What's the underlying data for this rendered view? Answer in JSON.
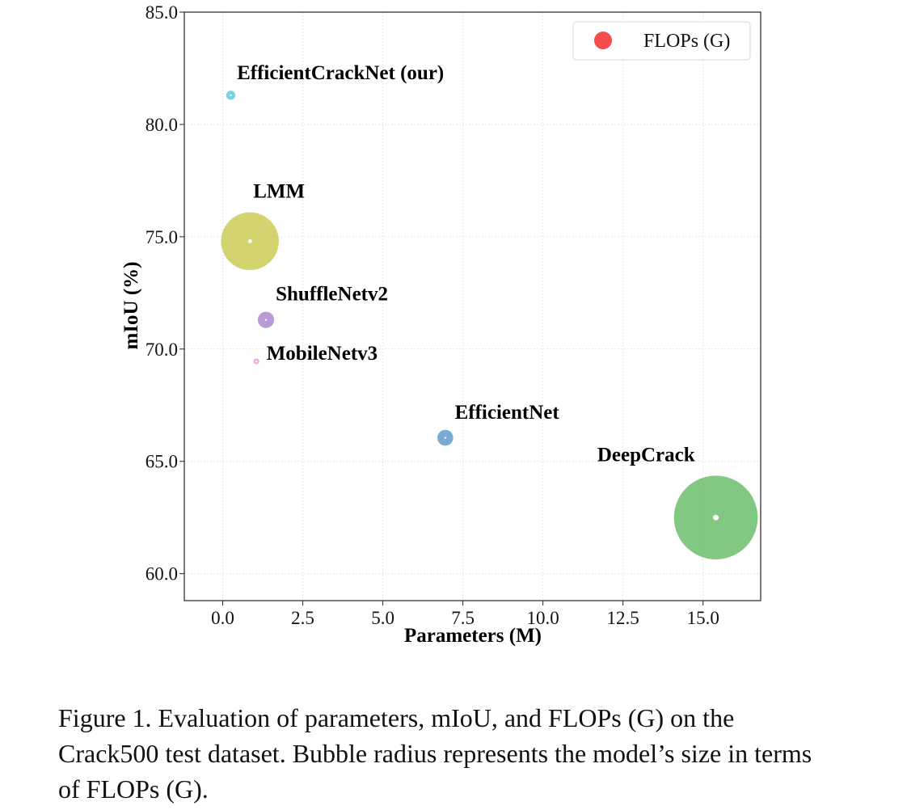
{
  "chart_data": {
    "type": "scatter",
    "title": "",
    "xlabel": "Parameters (M)",
    "ylabel": "mIoU (%)",
    "xlim": [
      -1.2,
      16.8
    ],
    "ylim": [
      58.8,
      85.0
    ],
    "xticks": [
      0.0,
      2.5,
      5.0,
      7.5,
      10.0,
      12.5,
      15.0
    ],
    "xtick_labels": [
      "0.0",
      "2.5",
      "5.0",
      "7.5",
      "10.0",
      "12.5",
      "15.0"
    ],
    "yticks": [
      60.0,
      65.0,
      70.0,
      75.0,
      80.0,
      85.0
    ],
    "ytick_labels": [
      "60.0",
      "65.0",
      "70.0",
      "75.0",
      "80.0",
      "85.0"
    ],
    "grid": true,
    "legend": {
      "label": "FLOPs (G)",
      "color": "#f44b4b",
      "position": "top-right"
    },
    "points": [
      {
        "name": "EfficientCrackNet (our)",
        "x": 0.25,
        "y": 81.3,
        "flops": 0.25,
        "color": "#5bc8d8",
        "label_side": "upper-right"
      },
      {
        "name": "LMM",
        "x": 0.85,
        "y": 74.8,
        "flops": 10.0,
        "color": "#c9c94f",
        "label_side": "above"
      },
      {
        "name": "ShuffleNetv2",
        "x": 1.35,
        "y": 71.3,
        "flops": 0.8,
        "color": "#a986cc",
        "label_side": "upper-right"
      },
      {
        "name": "MobileNetv3",
        "x": 1.05,
        "y": 69.45,
        "flops": 0.1,
        "color": "#e59bd6",
        "label_side": "right"
      },
      {
        "name": "EfficientNet",
        "x": 6.95,
        "y": 66.05,
        "flops": 0.75,
        "color": "#5b97c9",
        "label_side": "upper-right"
      },
      {
        "name": "DeepCrack",
        "x": 15.4,
        "y": 62.5,
        "flops": 21.0,
        "color": "#66bb66",
        "label_side": "upper-left"
      }
    ]
  },
  "caption": "Figure 1. Evaluation of parameters, mIoU, and FLOPs (G) on the Crack500 test dataset. Bubble radius represents the model’s size in terms of FLOPs (G)."
}
